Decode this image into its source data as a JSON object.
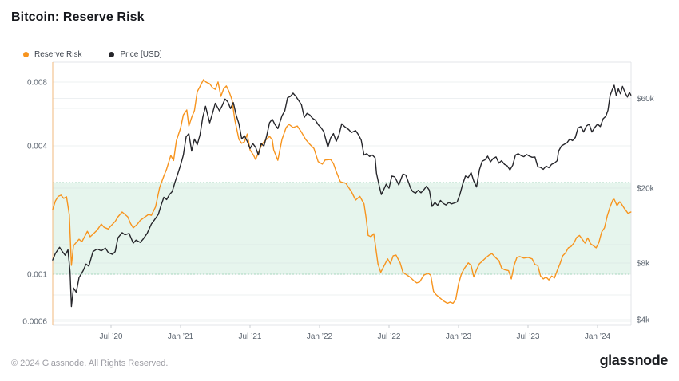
{
  "header": {
    "title": "Bitcoin: Reserve Risk"
  },
  "legend": [
    {
      "label": "Reserve Risk",
      "color": "#f7941e"
    },
    {
      "label": "Price [USD]",
      "color": "#26262b"
    }
  ],
  "footer": {
    "copyright": "© 2024 Glassnode. All Rights Reserved.",
    "brand": "glassnode"
  },
  "chart_data": {
    "type": "line",
    "title": "Bitcoin: Reserve Risk",
    "background": "#ffffff",
    "x_axis": {
      "range": [
        2020.08,
        2024.24
      ],
      "ticks": [
        2020.5,
        2021.0,
        2021.5,
        2022.0,
        2022.5,
        2023.0,
        2023.5,
        2024.0
      ],
      "tick_labels": [
        "Jul ’20",
        "Jan ’21",
        "Jul ’21",
        "Jan ’22",
        "Jul ’22",
        "Jan ’23",
        "Jul ’23",
        "Jan ’24"
      ]
    },
    "y_axis_left": {
      "label": "Reserve Risk",
      "scale": "log",
      "ticks": [
        0.008,
        0.004,
        0.001,
        0.0006
      ],
      "tick_labels": [
        "0.008",
        "0.004",
        "0.001",
        "0.0006"
      ],
      "gridlines": [
        0.008,
        0.006,
        0.004,
        0.002,
        0.001,
        0.0008,
        0.0006
      ]
    },
    "y_axis_right": {
      "label": "Price [USD]",
      "scale": "log",
      "ticks": [
        60000,
        20000,
        8000,
        4000
      ],
      "tick_labels": [
        "$60k",
        "$20k",
        "$8k",
        "$4k"
      ],
      "gridlines": [
        60000,
        20000,
        10000,
        8000,
        4000
      ]
    },
    "band": {
      "lower": 0.001,
      "upper": 0.0027,
      "color": "#e6f5ed",
      "border_color": "#a5d6bd"
    },
    "series": [
      {
        "name": "Reserve Risk",
        "axis": "left",
        "color": "#f7941e",
        "x": [
          2020.08,
          2020.1,
          2020.12,
          2020.14,
          2020.16,
          2020.18,
          2020.2,
          2020.215,
          2020.23,
          2020.25,
          2020.27,
          2020.29,
          2020.31,
          2020.33,
          2020.35,
          2020.37,
          2020.4,
          2020.43,
          2020.45,
          2020.48,
          2020.5,
          2020.53,
          2020.55,
          2020.58,
          2020.6,
          2020.62,
          2020.64,
          2020.66,
          2020.69,
          2020.71,
          2020.74,
          2020.77,
          2020.79,
          2020.82,
          2020.85,
          2020.88,
          2020.9,
          2020.93,
          2020.95,
          2020.97,
          2021.0,
          2021.02,
          2021.045,
          2021.06,
          2021.08,
          2021.1,
          2021.12,
          2021.14,
          2021.165,
          2021.185,
          2021.21,
          2021.23,
          2021.25,
          2021.27,
          2021.29,
          2021.31,
          2021.33,
          2021.35,
          2021.37,
          2021.39,
          2021.42,
          2021.44,
          2021.46,
          2021.48,
          2021.5,
          2021.525,
          2021.54,
          2021.56,
          2021.58,
          2021.6,
          2021.62,
          2021.64,
          2021.66,
          2021.67,
          2021.7,
          2021.73,
          2021.76,
          2021.78,
          2021.81,
          2021.84,
          2021.87,
          2021.9,
          2021.93,
          2021.96,
          2021.99,
          2022.02,
          2022.04,
          2022.08,
          2022.1,
          2022.12,
          2022.15,
          2022.19,
          2022.23,
          2022.26,
          2022.29,
          2022.32,
          2022.335,
          2022.35,
          2022.37,
          2022.39,
          2022.4,
          2022.42,
          2022.44,
          2022.46,
          2022.49,
          2022.51,
          2022.53,
          2022.55,
          2022.58,
          2022.6,
          2022.63,
          2022.65,
          2022.68,
          2022.7,
          2022.72,
          2022.75,
          2022.78,
          2022.8,
          2022.82,
          2022.84,
          2022.86,
          2022.89,
          2022.92,
          2022.94,
          2022.96,
          2022.98,
          2023.0,
          2023.02,
          2023.04,
          2023.07,
          2023.09,
          2023.11,
          2023.13,
          2023.15,
          2023.17,
          2023.2,
          2023.22,
          2023.24,
          2023.27,
          2023.29,
          2023.31,
          2023.33,
          2023.36,
          2023.38,
          2023.4,
          2023.42,
          2023.44,
          2023.47,
          2023.5,
          2023.53,
          2023.55,
          2023.57,
          2023.59,
          2023.61,
          2023.63,
          2023.65,
          2023.67,
          2023.69,
          2023.71,
          2023.73,
          2023.75,
          2023.77,
          2023.79,
          2023.81,
          2023.83,
          2023.85,
          2023.87,
          2023.89,
          2023.91,
          2023.93,
          2023.95,
          2023.97,
          2023.99,
          2024.01,
          2024.03,
          2024.05,
          2024.07,
          2024.09,
          2024.11,
          2024.12,
          2024.14,
          2024.16,
          2024.17,
          2024.19,
          2024.21,
          2024.22,
          2024.24
        ],
        "y": [
          0.00201,
          0.00221,
          0.00232,
          0.00235,
          0.00227,
          0.00231,
          0.0019,
          0.0011,
          0.00136,
          0.00141,
          0.00146,
          0.00142,
          0.0015,
          0.00159,
          0.0015,
          0.00154,
          0.00161,
          0.00172,
          0.00166,
          0.00163,
          0.00169,
          0.00177,
          0.00186,
          0.00196,
          0.00191,
          0.00186,
          0.00173,
          0.00165,
          0.00172,
          0.00179,
          0.00185,
          0.00191,
          0.00189,
          0.00207,
          0.00256,
          0.00289,
          0.00312,
          0.00361,
          0.00342,
          0.00424,
          0.00485,
          0.0056,
          0.00591,
          0.00497,
          0.00545,
          0.00588,
          0.0072,
          0.00762,
          0.0082,
          0.00798,
          0.00785,
          0.00752,
          0.00739,
          0.008,
          0.00684,
          0.00742,
          0.00766,
          0.00718,
          0.00661,
          0.00532,
          0.0043,
          0.00412,
          0.00419,
          0.00456,
          0.00384,
          0.00362,
          0.00346,
          0.00372,
          0.00401,
          0.00419,
          0.00431,
          0.00444,
          0.00428,
          0.00384,
          0.00343,
          0.0043,
          0.00489,
          0.00506,
          0.00489,
          0.00497,
          0.00465,
          0.0043,
          0.00408,
          0.0039,
          0.00338,
          0.00329,
          0.00344,
          0.00346,
          0.00331,
          0.00304,
          0.00272,
          0.00267,
          0.00244,
          0.00223,
          0.00232,
          0.00214,
          0.00184,
          0.00152,
          0.0015,
          0.00155,
          0.0014,
          0.00112,
          0.00102,
          0.00108,
          0.00118,
          0.00112,
          0.00122,
          0.00123,
          0.00113,
          0.00102,
          0.00099,
          0.00097,
          0.00093,
          0.00091,
          0.00092,
          0.00099,
          0.00101,
          0.00099,
          0.00083,
          0.0008,
          0.00078,
          0.00075,
          0.00073,
          0.00074,
          0.00073,
          0.00076,
          0.0009,
          0.001,
          0.00106,
          0.00113,
          0.0011,
          0.00097,
          0.00105,
          0.00112,
          0.00115,
          0.0012,
          0.00123,
          0.00125,
          0.00119,
          0.00116,
          0.00107,
          0.00105,
          0.00104,
          0.00095,
          0.0011,
          0.0012,
          0.00121,
          0.00119,
          0.0012,
          0.00118,
          0.00111,
          0.0011,
          0.00098,
          0.00095,
          0.00097,
          0.00094,
          0.00098,
          0.00096,
          0.00104,
          0.00112,
          0.00122,
          0.00126,
          0.00133,
          0.00135,
          0.0014,
          0.00149,
          0.00152,
          0.00146,
          0.0014,
          0.00148,
          0.00139,
          0.00136,
          0.00133,
          0.00141,
          0.00158,
          0.00165,
          0.00188,
          0.00207,
          0.00223,
          0.00225,
          0.0021,
          0.00219,
          0.00215,
          0.00205,
          0.00197,
          0.00193,
          0.00196
        ]
      },
      {
        "name": "Price [USD]",
        "axis": "right",
        "color": "#26262b",
        "x": [
          2020.08,
          2020.1,
          2020.13,
          2020.15,
          2020.17,
          2020.19,
          2020.205,
          2020.215,
          2020.23,
          2020.25,
          2020.27,
          2020.3,
          2020.32,
          2020.34,
          2020.37,
          2020.4,
          2020.43,
          2020.46,
          2020.48,
          2020.51,
          2020.53,
          2020.55,
          2020.58,
          2020.6,
          2020.63,
          2020.66,
          2020.68,
          2020.71,
          2020.73,
          2020.76,
          2020.79,
          2020.81,
          2020.84,
          2020.86,
          2020.88,
          2020.9,
          2020.92,
          2020.94,
          2020.96,
          2020.98,
          2021.0,
          2021.02,
          2021.04,
          2021.06,
          2021.08,
          2021.1,
          2021.12,
          2021.14,
          2021.16,
          2021.18,
          2021.21,
          2021.23,
          2021.25,
          2021.28,
          2021.3,
          2021.32,
          2021.34,
          2021.36,
          2021.38,
          2021.4,
          2021.42,
          2021.44,
          2021.46,
          2021.48,
          2021.5,
          2021.52,
          2021.54,
          2021.56,
          2021.58,
          2021.6,
          2021.62,
          2021.64,
          2021.66,
          2021.68,
          2021.7,
          2021.73,
          2021.75,
          2021.77,
          2021.79,
          2021.81,
          2021.83,
          2021.85,
          2021.87,
          2021.89,
          2021.91,
          2021.93,
          2021.95,
          2021.97,
          2021.99,
          2022.01,
          2022.03,
          2022.06,
          2022.08,
          2022.1,
          2022.12,
          2022.14,
          2022.16,
          2022.18,
          2022.21,
          2022.23,
          2022.26,
          2022.28,
          2022.3,
          2022.32,
          2022.34,
          2022.36,
          2022.38,
          2022.4,
          2022.41,
          2022.43,
          2022.445,
          2022.46,
          2022.48,
          2022.5,
          2022.52,
          2022.54,
          2022.55,
          2022.57,
          2022.6,
          2022.62,
          2022.64,
          2022.655,
          2022.67,
          2022.69,
          2022.71,
          2022.73,
          2022.75,
          2022.77,
          2022.79,
          2022.81,
          2022.83,
          2022.85,
          2022.87,
          2022.89,
          2022.91,
          2022.93,
          2022.95,
          2022.97,
          2022.99,
          2023.01,
          2023.03,
          2023.05,
          2023.07,
          2023.09,
          2023.11,
          2023.13,
          2023.15,
          2023.17,
          2023.19,
          2023.21,
          2023.23,
          2023.25,
          2023.27,
          2023.29,
          2023.31,
          2023.33,
          2023.35,
          2023.37,
          2023.39,
          2023.41,
          2023.43,
          2023.45,
          2023.47,
          2023.49,
          2023.51,
          2023.53,
          2023.55,
          2023.57,
          2023.59,
          2023.61,
          2023.63,
          2023.65,
          2023.67,
          2023.69,
          2023.71,
          2023.72,
          2023.74,
          2023.76,
          2023.78,
          2023.8,
          2023.82,
          2023.84,
          2023.86,
          2023.88,
          2023.9,
          2023.92,
          2023.94,
          2023.96,
          2023.98,
          2024.0,
          2024.02,
          2024.04,
          2024.06,
          2024.075,
          2024.09,
          2024.105,
          2024.12,
          2024.135,
          2024.15,
          2024.165,
          2024.18,
          2024.2,
          2024.215,
          2024.23,
          2024.24
        ],
        "y": [
          8300,
          9000,
          9700,
          9200,
          8800,
          9400,
          7200,
          4700,
          5900,
          5600,
          6700,
          7300,
          7900,
          7700,
          9200,
          9500,
          9300,
          9600,
          9100,
          8900,
          9200,
          10900,
          11600,
          11300,
          11500,
          10200,
          10600,
          10300,
          10700,
          11500,
          12900,
          13500,
          14500,
          16200,
          17900,
          17400,
          18500,
          19200,
          21500,
          23800,
          26500,
          30000,
          37500,
          39000,
          31500,
          36500,
          34000,
          38500,
          47500,
          54500,
          44500,
          50000,
          56500,
          51500,
          55000,
          59500,
          57500,
          53000,
          57000,
          49000,
          44000,
          36500,
          38000,
          35500,
          32500,
          34500,
          33000,
          30000,
          34500,
          33500,
          38000,
          44500,
          46500,
          43500,
          41500,
          48500,
          51500,
          60500,
          61500,
          64000,
          61500,
          58500,
          55500,
          47500,
          50000,
          49000,
          47000,
          46000,
          43500,
          42000,
          40000,
          33000,
          37000,
          39000,
          35500,
          38500,
          44000,
          42500,
          41000,
          39500,
          40500,
          38500,
          36000,
          30000,
          30500,
          29500,
          30000,
          29000,
          24000,
          20500,
          18500,
          19500,
          21000,
          20000,
          23200,
          23000,
          22300,
          20800,
          23800,
          23500,
          21500,
          20000,
          19200,
          18800,
          19500,
          18900,
          19600,
          20500,
          19500,
          16000,
          16800,
          16200,
          17200,
          16600,
          16300,
          16800,
          16500,
          16700,
          16900,
          18500,
          21000,
          23200,
          22800,
          24200,
          21800,
          20300,
          25000,
          27800,
          28300,
          29600,
          27600,
          28800,
          29300,
          27200,
          28000,
          26800,
          26300,
          25000,
          26500,
          30000,
          30500,
          29800,
          29400,
          30200,
          29600,
          29200,
          29300,
          26000,
          25800,
          25200,
          26200,
          25700,
          26800,
          27200,
          28000,
          31500,
          33500,
          34200,
          34800,
          36500,
          35800,
          37200,
          41800,
          42500,
          39800,
          42800,
          43800,
          39800,
          42000,
          43800,
          42500,
          46800,
          48200,
          52000,
          62000,
          66500,
          70500,
          62000,
          67500,
          63500,
          69500,
          64000,
          61000,
          64500,
          62500
        ]
      }
    ]
  }
}
